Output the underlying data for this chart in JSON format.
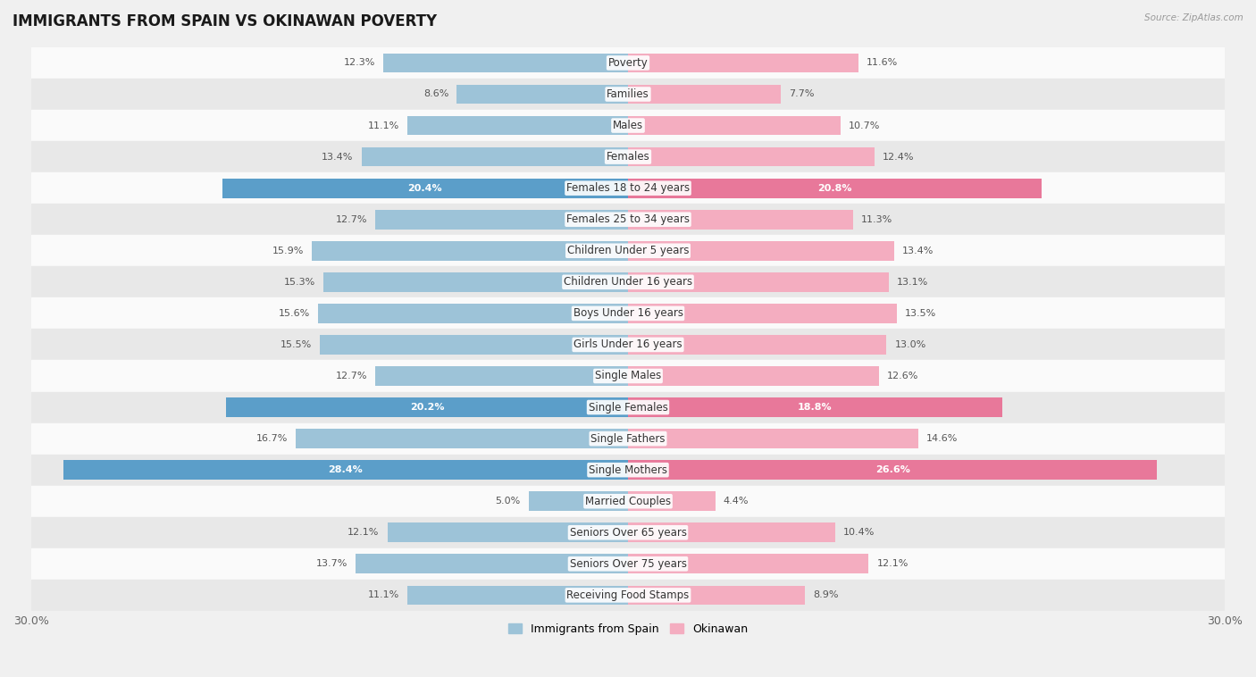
{
  "title": "IMMIGRANTS FROM SPAIN VS OKINAWAN POVERTY",
  "source": "Source: ZipAtlas.com",
  "categories": [
    "Poverty",
    "Families",
    "Males",
    "Females",
    "Females 18 to 24 years",
    "Females 25 to 34 years",
    "Children Under 5 years",
    "Children Under 16 years",
    "Boys Under 16 years",
    "Girls Under 16 years",
    "Single Males",
    "Single Females",
    "Single Fathers",
    "Single Mothers",
    "Married Couples",
    "Seniors Over 65 years",
    "Seniors Over 75 years",
    "Receiving Food Stamps"
  ],
  "spain_values": [
    12.3,
    8.6,
    11.1,
    13.4,
    20.4,
    12.7,
    15.9,
    15.3,
    15.6,
    15.5,
    12.7,
    20.2,
    16.7,
    28.4,
    5.0,
    12.1,
    13.7,
    11.1
  ],
  "okinawan_values": [
    11.6,
    7.7,
    10.7,
    12.4,
    20.8,
    11.3,
    13.4,
    13.1,
    13.5,
    13.0,
    12.6,
    18.8,
    14.6,
    26.6,
    4.4,
    10.4,
    12.1,
    8.9
  ],
  "spain_color": "#9dc3d8",
  "okinawan_color": "#f4adc0",
  "spain_highlight_color": "#5b9ec9",
  "okinawan_highlight_color": "#e8789a",
  "highlight_rows": [
    4,
    11,
    13
  ],
  "xlim": 30.0,
  "bar_height": 0.62,
  "background_color": "#f0f0f0",
  "row_bg_light": "#fafafa",
  "row_bg_dark": "#e8e8e8",
  "legend_spain": "Immigrants from Spain",
  "legend_okinawan": "Okinawan",
  "title_fontsize": 12,
  "label_fontsize": 8.5,
  "value_fontsize": 8.0
}
